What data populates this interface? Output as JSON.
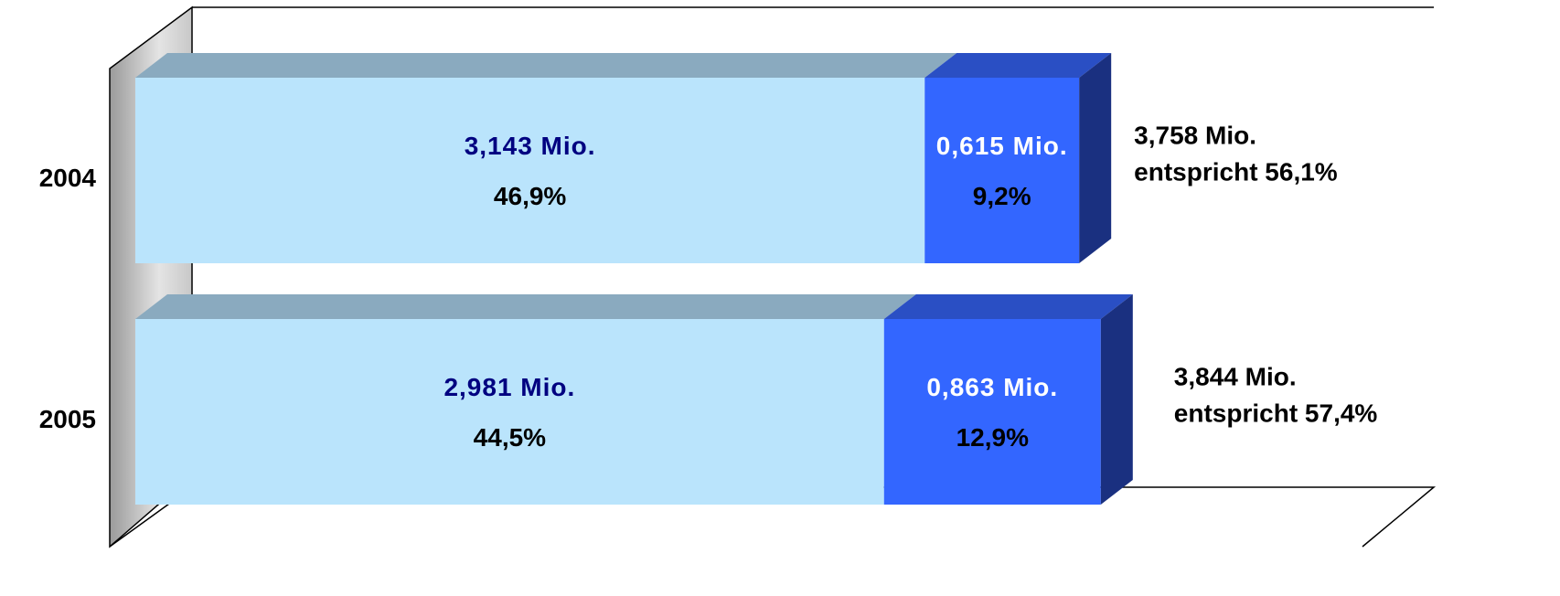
{
  "chart_data": {
    "type": "bar3d_stacked_horizontal",
    "categories": [
      "2004",
      "2005"
    ],
    "series": [
      {
        "color": "#bae4fc",
        "top_color": "#8aaabf",
        "label_color": "#000080",
        "values": [
          3.143,
          2.981
        ],
        "value_labels": [
          "3,143 Mio.",
          "2,981 Mio."
        ],
        "share_labels": [
          "46,9%",
          "44,5%"
        ]
      },
      {
        "color": "#3366ff",
        "top_color": "#2a4fc4",
        "side_color": "#1a3080",
        "label_color": "#ffffff",
        "values": [
          0.615,
          0.863
        ],
        "value_labels": [
          "0,615 Mio.",
          "0,863 Mio."
        ],
        "share_labels": [
          "9,2%",
          "12,9%"
        ]
      }
    ],
    "annotations": [
      [
        "3,758 Mio.",
        "entspricht 56,1%"
      ],
      [
        "3,844 Mio.",
        "entspricht 57,4%"
      ]
    ],
    "xlim": [
      0,
      5.17
    ]
  }
}
